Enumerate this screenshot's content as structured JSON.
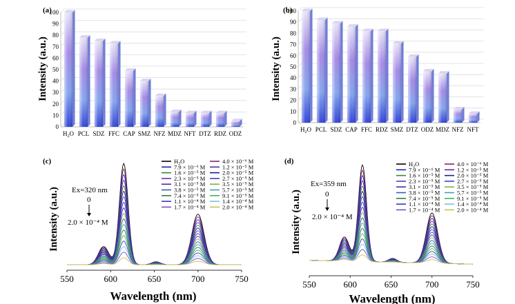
{
  "chart_data": [
    {
      "type": "bar",
      "panel_label": "(a)",
      "ylabel": "Intensity (a.u.)",
      "xlabel": "",
      "ylim": [
        0,
        100
      ],
      "yticks": [
        0,
        10,
        20,
        30,
        40,
        50,
        60,
        70,
        80,
        90,
        100
      ],
      "grid": true,
      "categories": [
        "H2O",
        "PCL",
        "SDZ",
        "FFC",
        "CAP",
        "SMZ",
        "NFZ",
        "MDZ",
        "NFT",
        "DTZ",
        "RDZ",
        "ODZ"
      ],
      "values": [
        100,
        78,
        75,
        73,
        49,
        40,
        27,
        13,
        12,
        12,
        12,
        5
      ]
    },
    {
      "type": "bar",
      "panel_label": "(b)",
      "ylabel": "Intensity (a.u.)",
      "xlabel": "",
      "ylim": [
        0,
        100
      ],
      "yticks": [
        0,
        10,
        20,
        30,
        40,
        50,
        60,
        70,
        80,
        90,
        100
      ],
      "grid": true,
      "categories": [
        "H2O",
        "PCL",
        "SDZ",
        "CAP",
        "FFC",
        "RDZ",
        "SMZ",
        "DTZ",
        "ODZ",
        "MDZ",
        "NFZ",
        "NFT"
      ],
      "values": [
        100,
        92,
        89,
        86,
        82,
        82,
        71,
        59,
        46,
        44,
        12,
        8
      ]
    },
    {
      "type": "line",
      "panel_label": "(c)",
      "xlabel": "Wavelength (nm)",
      "ylabel": "Intensity (a.u.)",
      "xlim": [
        550,
        750
      ],
      "xticks": [
        550,
        600,
        650,
        700,
        750
      ],
      "annotations": [
        "Ex=320 nm",
        "0",
        "2.0 × 10⁻⁴ M"
      ],
      "legend": [
        "H2O",
        "7.9 × 10⁻⁶ M",
        "1.6 × 10⁻⁵ M",
        "2.3 × 10⁻⁵ M",
        "3.1 × 10⁻⁵ M",
        "3.8 × 10⁻⁵ M",
        "7.4 × 10⁻⁵ M",
        "1.1 × 10⁻⁴ M",
        "1.7 × 10⁻⁴ M",
        "4.0 × 10⁻⁶ M",
        "1.2 × 10⁻⁵ M",
        "2.0 × 10⁻⁵ M",
        "2.7 × 10⁻⁵ M",
        "3.5 × 10⁻⁵ M",
        "5.7 × 10⁻⁵ M",
        "9.1 × 10⁻⁵ M",
        "1.4 × 10⁻⁴ M",
        "2.0 × 10⁻⁴ M"
      ],
      "peaks": [
        {
          "x": 592,
          "ymax": 18
        },
        {
          "x": 615,
          "ymax": 100
        },
        {
          "x": 652,
          "ymax": 3
        },
        {
          "x": 700,
          "ymax": 50
        }
      ]
    },
    {
      "type": "line",
      "panel_label": "(d)",
      "xlabel": "Wavelength (nm)",
      "ylabel": "Intensity (a.u.)",
      "xlim": [
        550,
        750
      ],
      "xticks": [
        550,
        600,
        650,
        700,
        750
      ],
      "annotations": [
        "Ex=359 nm",
        "0",
        "2.0 × 10⁻⁴ M"
      ],
      "legend": [
        "H2O",
        "7.9 × 10⁻⁶ M",
        "1.6 × 10⁻⁵ M",
        "2.3 × 10⁻⁵ M",
        "3.1 × 10⁻⁵ M",
        "3.8 × 10⁻⁵ M",
        "7.4 × 10⁻⁵ M",
        "1.1 × 10⁻⁴ M",
        "1.7 × 10⁻⁴ M",
        "4.0 × 10⁻⁶ M",
        "1.2 × 10⁻⁵ M",
        "2.0 × 10⁻⁵ M",
        "2.7 × 10⁻⁵ M",
        "3.5 × 10⁻⁵ M",
        "5.7 × 10⁻⁵ M",
        "9.1 × 10⁻⁵ M",
        "1.4 × 10⁻⁴ M",
        "2.0 × 10⁻⁴ M"
      ],
      "peaks": [
        {
          "x": 593,
          "ymax": 25
        },
        {
          "x": 615,
          "ymax": 100
        },
        {
          "x": 652,
          "ymax": 4
        },
        {
          "x": 700,
          "ymax": 52
        }
      ]
    }
  ],
  "legend_colors": [
    "#000000",
    "#1f1fbf",
    "#2e8b2e",
    "#6a2fb5",
    "#4b2d9e",
    "#2f5fa8",
    "#3a7a3a",
    "#3434c8",
    "#7a4fbf",
    "#8a1f6e",
    "#5a2d8c",
    "#1a1a9a",
    "#3a3ad0",
    "#7fb040",
    "#3fa0b0",
    "#46b060",
    "#7ac0e0",
    "#c8c050"
  ]
}
